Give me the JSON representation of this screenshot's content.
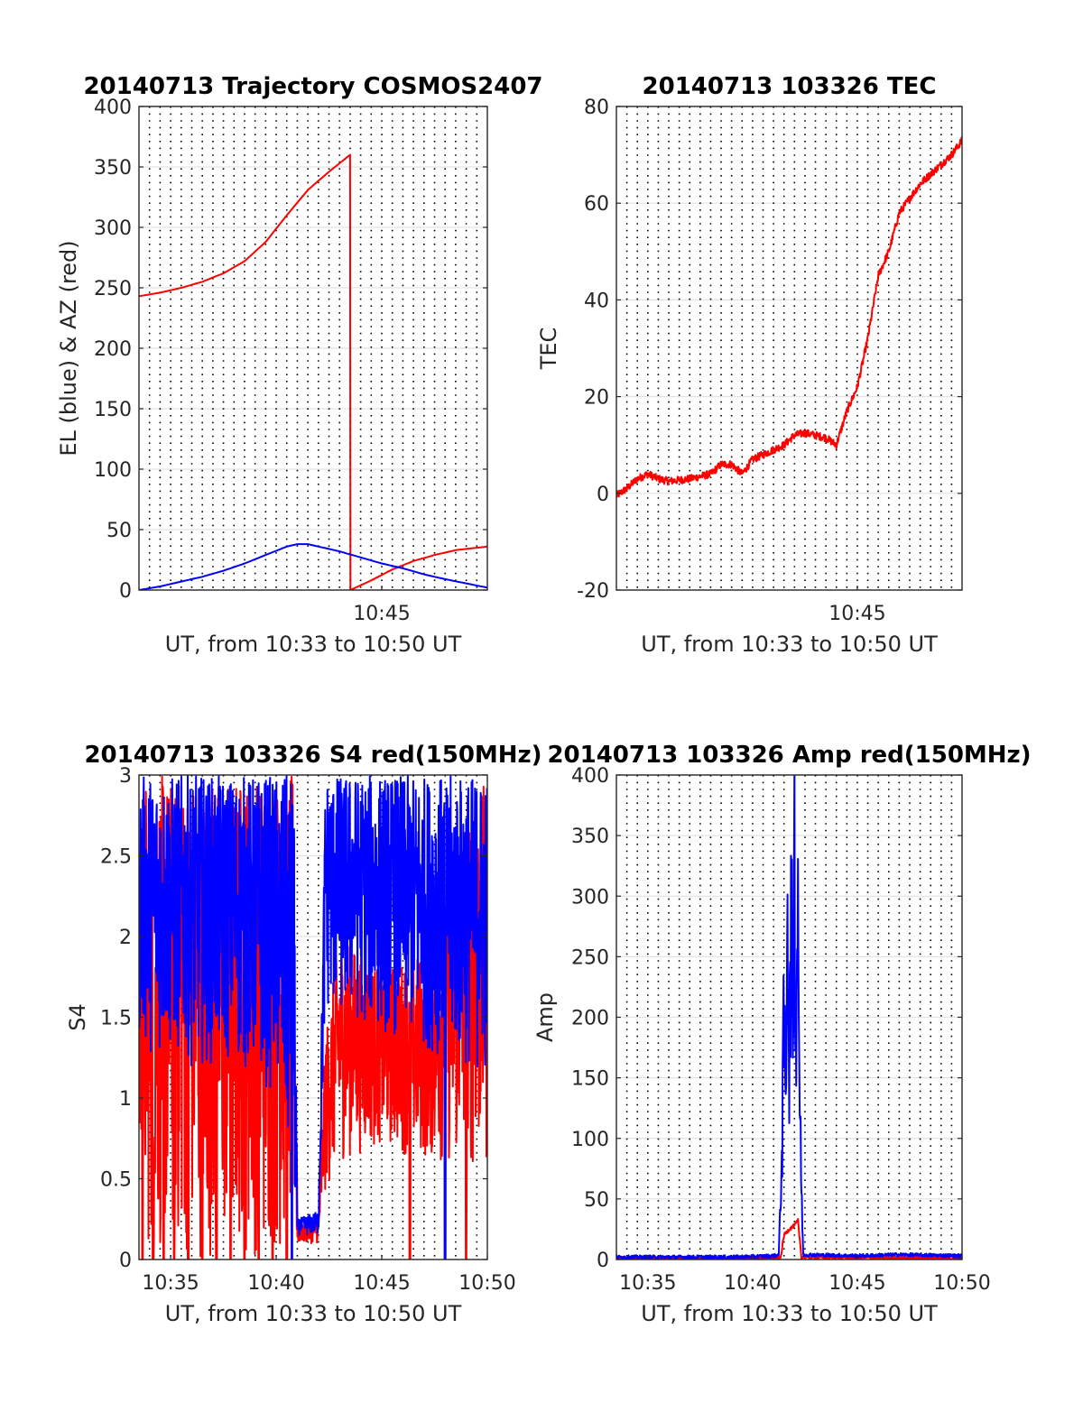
{
  "chart_data": [
    {
      "type": "line",
      "title": "20140713 Trajectory COSMOS2407",
      "xlabel": "UT, from 10:33 to 10:50 UT",
      "ylabel": "EL (blue) & AZ (red)",
      "xlim": [
        "10:33:30",
        "10:50:00"
      ],
      "ylim": [
        0,
        400
      ],
      "yticks": [
        "0",
        "50",
        "100",
        "150",
        "200",
        "250",
        "300",
        "350",
        "400"
      ],
      "xticks": [
        {
          "x": "10:45",
          "label": "10:45"
        }
      ],
      "grid": "dotted vertical every 30 s, solid horizontal",
      "series": [
        {
          "name": "AZ",
          "color": "#ff0000",
          "points": [
            [
              "10:33:30",
              243
            ],
            [
              "10:34:30",
              246
            ],
            [
              "10:35:30",
              250
            ],
            [
              "10:36:30",
              255
            ],
            [
              "10:37:30",
              262
            ],
            [
              "10:38:30",
              272
            ],
            [
              "10:39:30",
              288
            ],
            [
              "10:40:30",
              310
            ],
            [
              "10:41:30",
              331
            ],
            [
              "10:42:30",
              346
            ],
            [
              "10:43:30",
              360
            ],
            [
              "10:43:31",
              0
            ],
            [
              "10:44:30",
              8
            ],
            [
              "10:45:30",
              17
            ],
            [
              "10:46:30",
              24
            ],
            [
              "10:47:30",
              29
            ],
            [
              "10:48:30",
              33
            ],
            [
              "10:50:00",
              36
            ]
          ]
        },
        {
          "name": "EL",
          "color": "#0000ff",
          "points": [
            [
              "10:33:30",
              0
            ],
            [
              "10:34:30",
              3
            ],
            [
              "10:35:30",
              7
            ],
            [
              "10:36:30",
              11
            ],
            [
              "10:37:30",
              16
            ],
            [
              "10:38:30",
              22
            ],
            [
              "10:39:30",
              29
            ],
            [
              "10:40:30",
              36
            ],
            [
              "10:41:00",
              38
            ],
            [
              "10:41:30",
              38
            ],
            [
              "10:42:00",
              36
            ],
            [
              "10:43:00",
              32
            ],
            [
              "10:44:00",
              27
            ],
            [
              "10:45:00",
              22
            ],
            [
              "10:46:00",
              18
            ],
            [
              "10:47:00",
              13
            ],
            [
              "10:48:00",
              9
            ],
            [
              "10:50:00",
              2
            ]
          ]
        }
      ]
    },
    {
      "type": "line",
      "title": "20140713 103326 TEC",
      "xlabel": "UT, from 10:33 to 10:50 UT",
      "ylabel": "TEC",
      "xlim": [
        "10:33:30",
        "10:50:00"
      ],
      "ylim": [
        -20,
        80
      ],
      "yticks": [
        "-20",
        "0",
        "20",
        "40",
        "60",
        "80"
      ],
      "xticks": [
        {
          "x": "10:45",
          "label": "10:45"
        }
      ],
      "grid": "dotted vertical every 30 s, solid horizontal",
      "series": [
        {
          "name": "TEC",
          "color": "#ff0000",
          "points": [
            [
              "10:33:30",
              -0.5
            ],
            [
              "10:34:00",
              1
            ],
            [
              "10:34:30",
              3
            ],
            [
              "10:35:00",
              4
            ],
            [
              "10:35:30",
              3
            ],
            [
              "10:36:00",
              2.5
            ],
            [
              "10:37:00",
              3
            ],
            [
              "10:38:00",
              4
            ],
            [
              "10:38:30",
              6
            ],
            [
              "10:39:00",
              6
            ],
            [
              "10:39:30",
              4
            ],
            [
              "10:40:00",
              7
            ],
            [
              "10:40:30",
              8
            ],
            [
              "10:41:00",
              9
            ],
            [
              "10:41:30",
              10
            ],
            [
              "10:42:00",
              12
            ],
            [
              "10:42:30",
              12.5
            ],
            [
              "10:43:00",
              12
            ],
            [
              "10:43:30",
              11.5
            ],
            [
              "10:44:00",
              10
            ],
            [
              "10:44:30",
              17
            ],
            [
              "10:45:00",
              22
            ],
            [
              "10:45:30",
              32
            ],
            [
              "10:46:00",
              45
            ],
            [
              "10:46:30",
              50
            ],
            [
              "10:47:00",
              58
            ],
            [
              "10:47:30",
              61
            ],
            [
              "10:48:00",
              64
            ],
            [
              "10:48:30",
              66
            ],
            [
              "10:49:00",
              68
            ],
            [
              "10:49:30",
              70
            ],
            [
              "10:50:00",
              73
            ]
          ]
        }
      ]
    },
    {
      "type": "line",
      "title": "20140713 103326 S4 red(150MHz)",
      "xlabel": "UT, from 10:33 to 10:50 UT",
      "ylabel": "S4",
      "xlim": [
        "10:33:30",
        "10:50:00"
      ],
      "ylim": [
        0,
        3
      ],
      "yticks": [
        "0",
        "0.5",
        "1",
        "1.5",
        "2",
        "2.5",
        "3"
      ],
      "xticks": [
        {
          "x": "10:35",
          "label": "10:35"
        },
        {
          "x": "10:40",
          "label": "10:40"
        },
        {
          "x": "10:45",
          "label": "10:45"
        },
        {
          "x": "10:50",
          "label": "10:50"
        }
      ],
      "grid": "dotted vertical every 30 s, solid horizontal",
      "series": [
        {
          "name": "S4 red",
          "color": "#ff0000",
          "envelope": [
            [
              "10:33:30",
              0,
              3
            ],
            [
              "10:36:00",
              0,
              3
            ],
            [
              "10:38:00",
              0,
              3
            ],
            [
              "10:40:00",
              0,
              3
            ],
            [
              "10:40:50",
              0,
              3
            ],
            [
              "10:41:00",
              0.1,
              0.2
            ],
            [
              "10:42:00",
              0.1,
              0.25
            ],
            [
              "10:42:20",
              0.4,
              1.4
            ],
            [
              "10:43:00",
              0.6,
              2.0
            ],
            [
              "10:45:00",
              0.7,
              1.8
            ],
            [
              "10:47:00",
              0.6,
              1.9
            ],
            [
              "10:50:00",
              0.5,
              3
            ]
          ],
          "drops_to_zero": [
            "10:33:40",
            "10:34:10",
            "10:34:40",
            "10:35:10",
            "10:35:50",
            "10:36:30",
            "10:37:10",
            "10:37:50",
            "10:38:30",
            "10:39:10",
            "10:39:50",
            "10:40:30",
            "10:46:20",
            "10:49:00"
          ]
        },
        {
          "name": "S4 blue",
          "color": "#0000ff",
          "envelope": [
            [
              "10:33:30",
              1.3,
              3
            ],
            [
              "10:36:00",
              1.2,
              3
            ],
            [
              "10:38:00",
              1.2,
              3
            ],
            [
              "10:40:00",
              1.0,
              3
            ],
            [
              "10:40:50",
              0.3,
              3
            ],
            [
              "10:41:00",
              0.15,
              0.25
            ],
            [
              "10:42:00",
              0.15,
              0.3
            ],
            [
              "10:42:20",
              1.5,
              3
            ],
            [
              "10:45:00",
              1.4,
              3
            ],
            [
              "10:47:00",
              1.3,
              3
            ],
            [
              "10:50:00",
              1.1,
              3
            ]
          ],
          "drops_to_zero": [
            "10:40:45",
            "10:48:00"
          ]
        }
      ]
    },
    {
      "type": "line",
      "title": "20140713 103326 Amp red(150MHz)",
      "xlabel": "UT, from 10:33 to 10:50 UT",
      "ylabel": "Amp",
      "xlim": [
        "10:33:30",
        "10:50:00"
      ],
      "ylim": [
        0,
        400
      ],
      "yticks": [
        "0",
        "50",
        "100",
        "150",
        "200",
        "250",
        "300",
        "350",
        "400"
      ],
      "xticks": [
        {
          "x": "10:35",
          "label": "10:35"
        },
        {
          "x": "10:40",
          "label": "10:40"
        },
        {
          "x": "10:45",
          "label": "10:45"
        },
        {
          "x": "10:50",
          "label": "10:50"
        }
      ],
      "grid": "dotted vertical every 30 s, solid horizontal",
      "series": [
        {
          "name": "Amp red",
          "color": "#ff0000",
          "points": [
            [
              "10:33:30",
              1
            ],
            [
              "10:41:20",
              1
            ],
            [
              "10:41:30",
              20
            ],
            [
              "10:41:45",
              25
            ],
            [
              "10:42:00",
              28
            ],
            [
              "10:42:10",
              32
            ],
            [
              "10:42:20",
              2
            ],
            [
              "10:50:00",
              1
            ]
          ]
        },
        {
          "name": "Amp blue",
          "color": "#0000ff",
          "points": [
            [
              "10:33:30",
              2
            ],
            [
              "10:35:00",
              2
            ],
            [
              "10:37:00",
              2
            ],
            [
              "10:39:00",
              2
            ],
            [
              "10:41:00",
              3
            ],
            [
              "10:41:15",
              4
            ],
            [
              "10:41:25",
              100
            ],
            [
              "10:41:30",
              200
            ],
            [
              "10:41:35",
              120
            ],
            [
              "10:41:40",
              330
            ],
            [
              "10:41:45",
              150
            ],
            [
              "10:41:50",
              290
            ],
            [
              "10:41:55",
              200
            ],
            [
              "10:42:00",
              340
            ],
            [
              "10:42:05",
              180
            ],
            [
              "10:42:10",
              330
            ],
            [
              "10:42:15",
              120
            ],
            [
              "10:42:20",
              60
            ],
            [
              "10:42:25",
              4
            ],
            [
              "10:45:00",
              3
            ],
            [
              "10:47:00",
              4
            ],
            [
              "10:50:00",
              3
            ]
          ]
        }
      ]
    }
  ]
}
